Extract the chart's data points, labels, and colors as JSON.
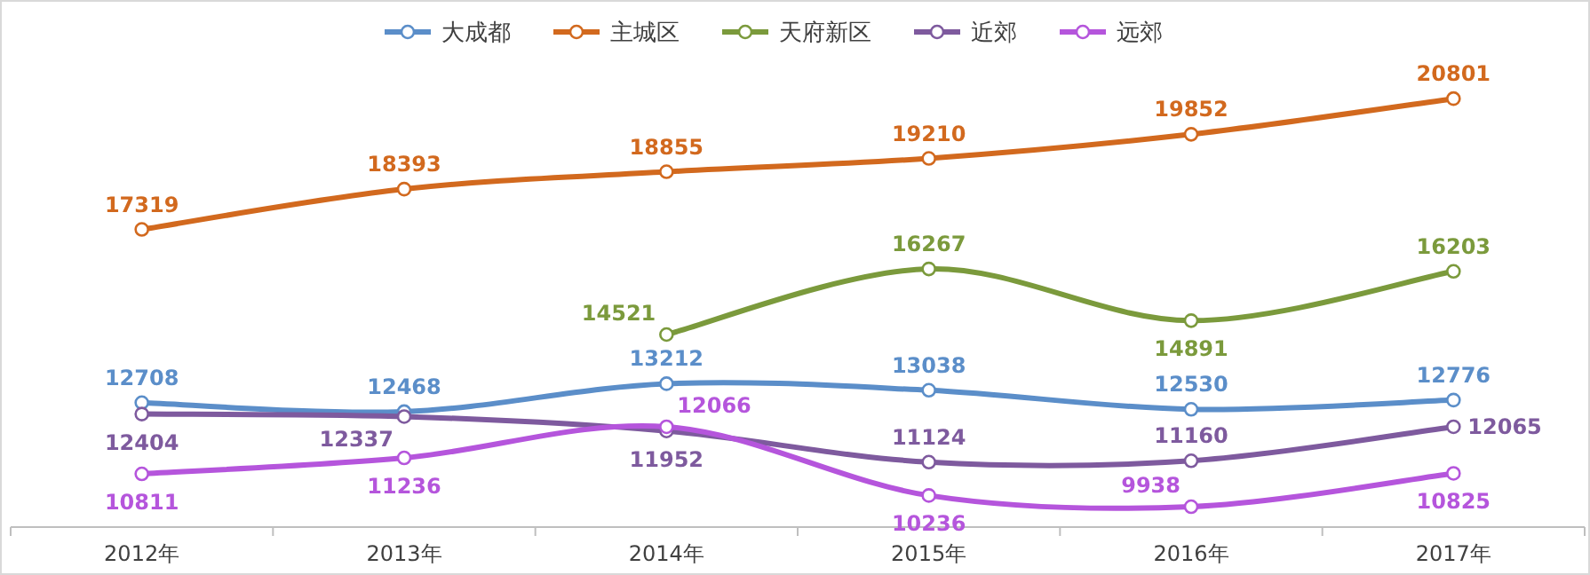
{
  "chart_data": {
    "type": "line",
    "categories": [
      "2012年",
      "2013年",
      "2014年",
      "2015年",
      "2016年",
      "2017年"
    ],
    "data_labels": true,
    "marker": "circle",
    "legend": "top",
    "series": [
      {
        "name": "大成都",
        "color": "#5b8ec9",
        "values": [
          12708,
          12468,
          13212,
          13038,
          12530,
          12776
        ]
      },
      {
        "name": "主城区",
        "color": "#d2691e",
        "values": [
          17319,
          18393,
          18855,
          19210,
          19852,
          20801
        ]
      },
      {
        "name": "天府新区",
        "color": "#7b9a3c",
        "values": [
          null,
          null,
          14521,
          16267,
          14891,
          16203
        ]
      },
      {
        "name": "近郊",
        "color": "#7e5a9e",
        "values": [
          12404,
          12337,
          11952,
          11124,
          11160,
          12065
        ]
      },
      {
        "name": "远郊",
        "color": "#b555dc",
        "values": [
          10811,
          11236,
          12066,
          10236,
          9938,
          10825
        ]
      }
    ]
  }
}
